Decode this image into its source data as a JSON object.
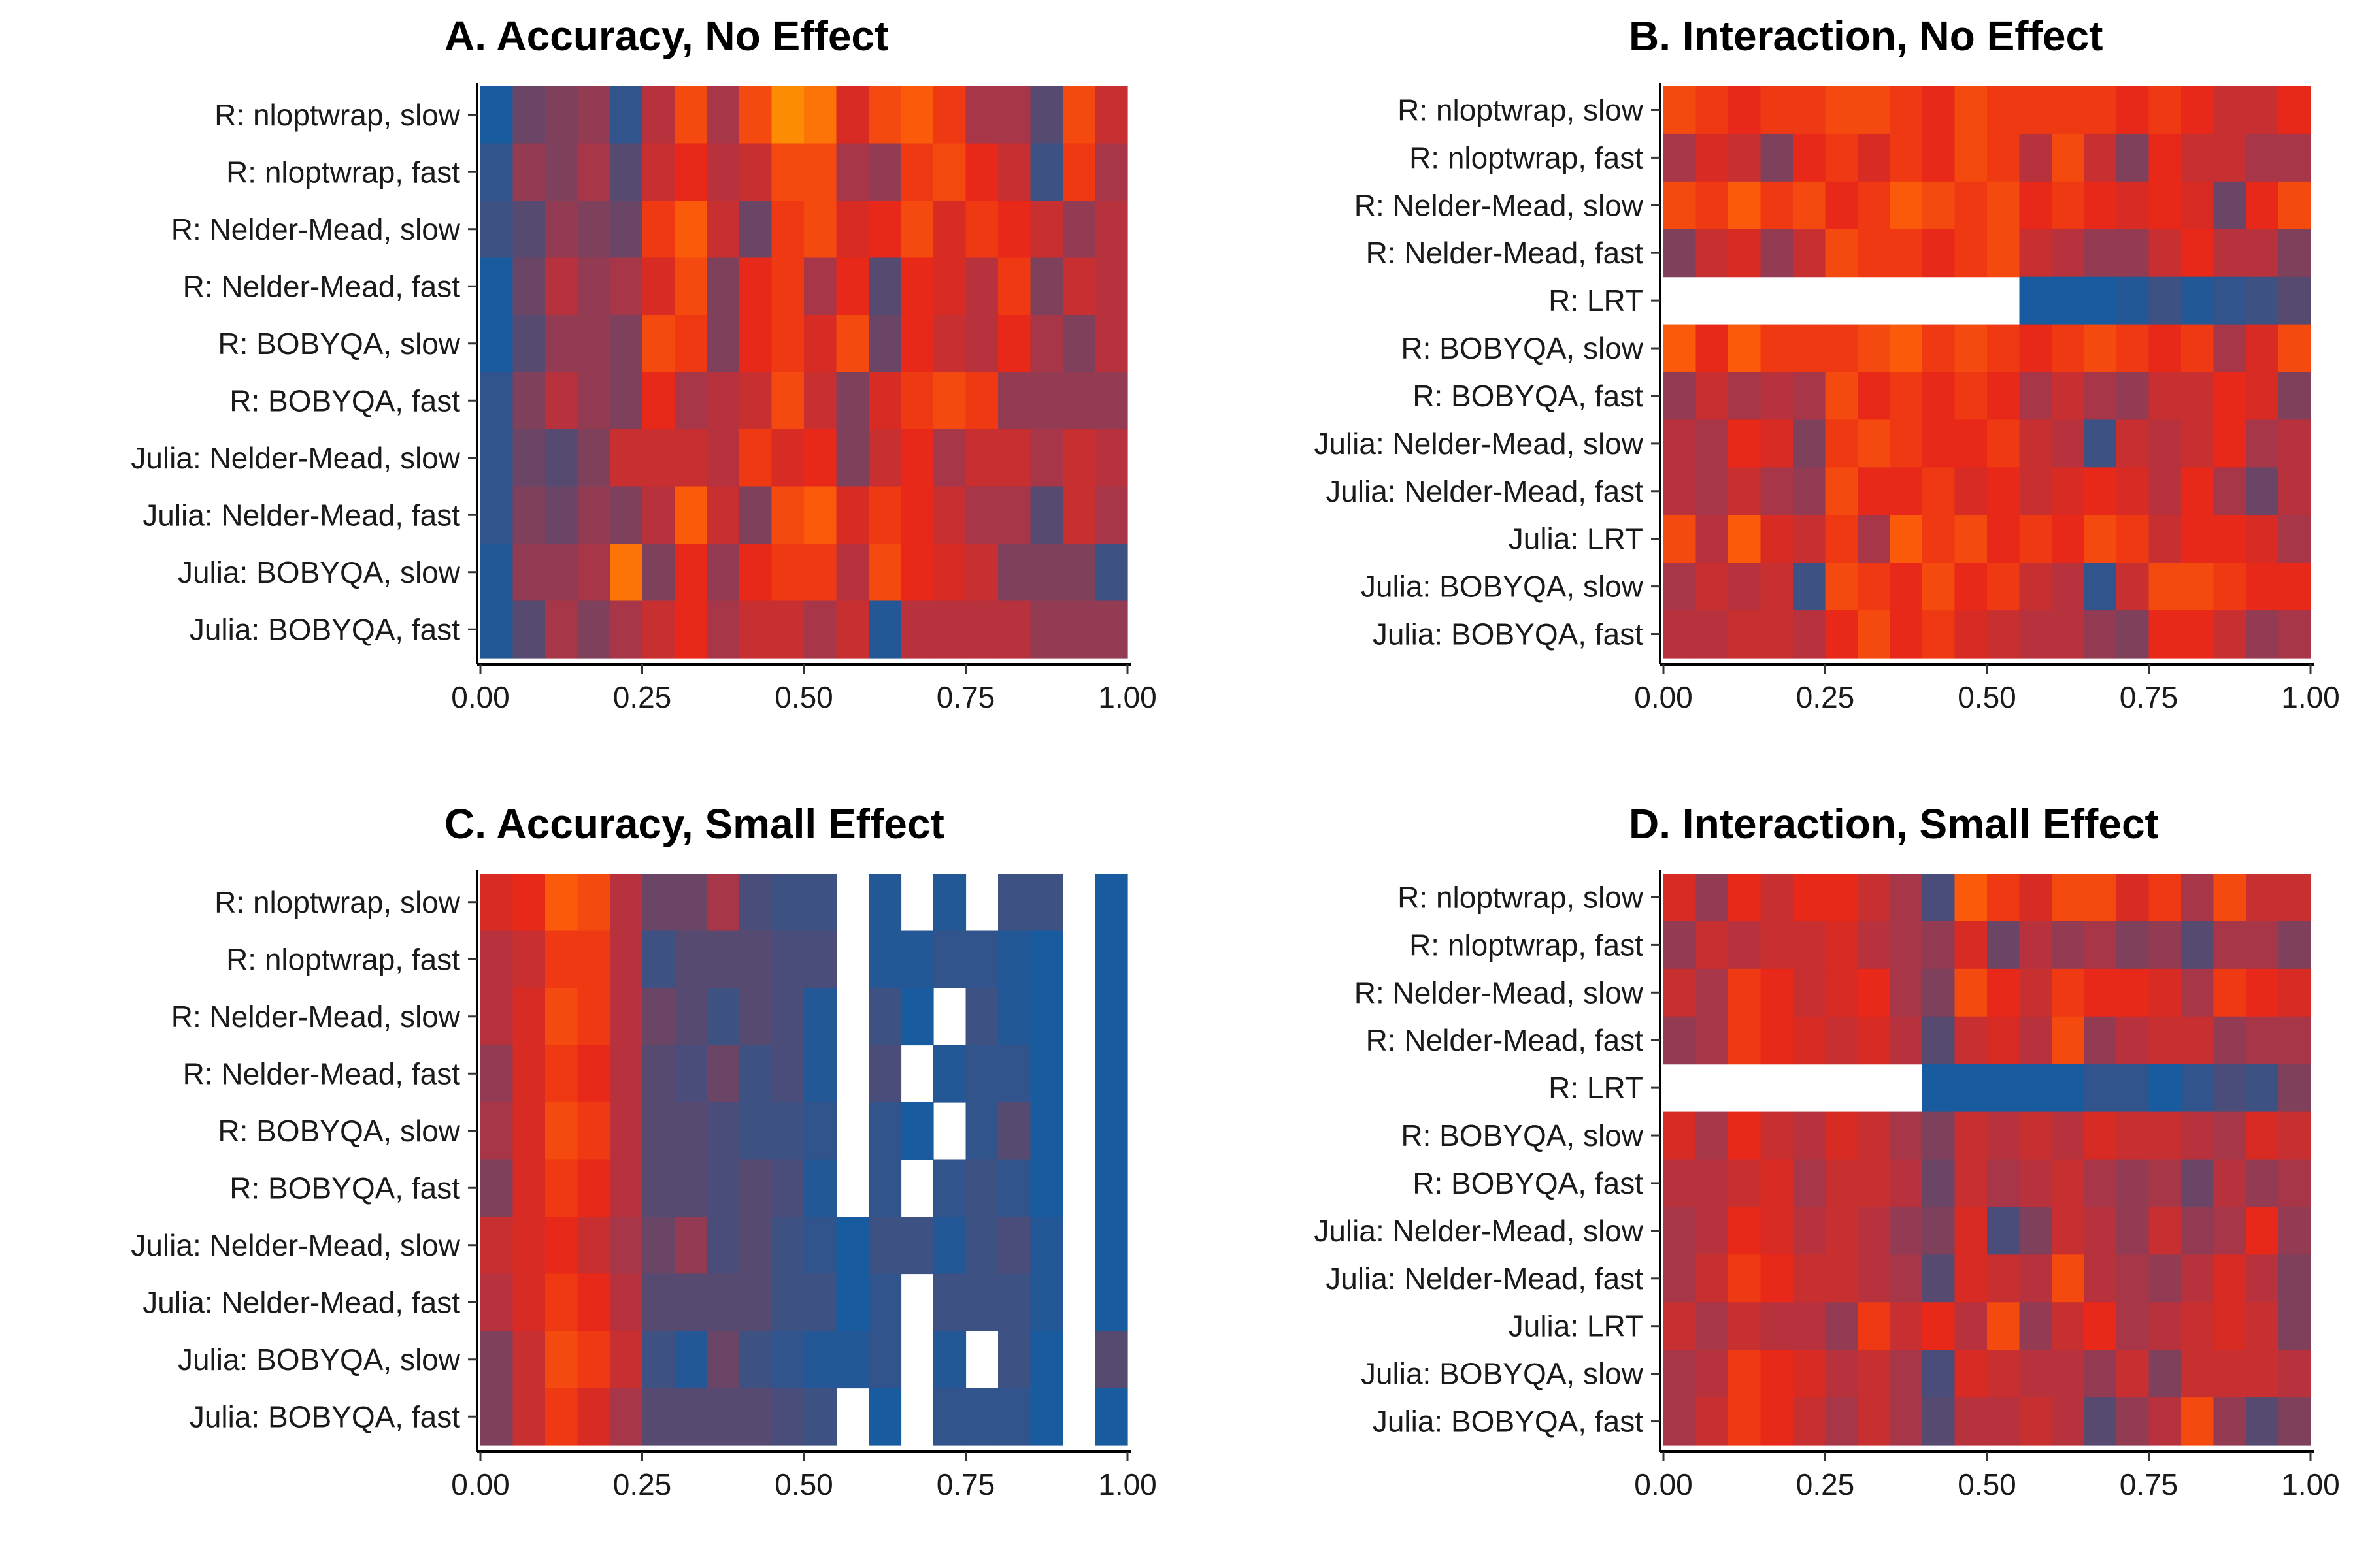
{
  "chart_data": [
    {
      "type": "heatmap",
      "title": "A. Accuracy, No Effect",
      "xlim": [
        0,
        1
      ],
      "x_ticks": [
        0,
        0.25,
        0.5,
        0.75,
        1
      ],
      "x_tick_labels": [
        "0.00",
        "0.25",
        "0.50",
        "0.75",
        "1.00"
      ],
      "bin_width": 0.05,
      "rows": [
        "R: nloptwrap, slow",
        "R: nloptwrap, fast",
        "R: Nelder-Mead, slow",
        "R: Nelder-Mead, fast",
        "R: BOBYQA, slow",
        "R: BOBYQA, fast",
        "Julia: Nelder-Mead, slow",
        "Julia: Nelder-Mead, fast",
        "Julia: BOBYQA, slow",
        "Julia: BOBYQA, fast"
      ],
      "values": [
        [
          0.05,
          0.35,
          0.4,
          0.45,
          0.15,
          0.55,
          0.8,
          0.5,
          0.8,
          0.95,
          0.9,
          0.65,
          0.8,
          0.85,
          0.75,
          0.5,
          0.5,
          0.3,
          0.8,
          0.6
        ],
        [
          0.15,
          0.45,
          0.4,
          0.5,
          0.3,
          0.6,
          0.7,
          0.55,
          0.6,
          0.8,
          0.8,
          0.5,
          0.45,
          0.75,
          0.8,
          0.7,
          0.6,
          0.2,
          0.75,
          0.5
        ],
        [
          0.2,
          0.3,
          0.45,
          0.4,
          0.35,
          0.75,
          0.85,
          0.6,
          0.35,
          0.75,
          0.8,
          0.65,
          0.7,
          0.8,
          0.65,
          0.75,
          0.7,
          0.6,
          0.45,
          0.55
        ],
        [
          0.05,
          0.35,
          0.55,
          0.45,
          0.5,
          0.65,
          0.8,
          0.4,
          0.7,
          0.75,
          0.5,
          0.7,
          0.3,
          0.7,
          0.65,
          0.55,
          0.75,
          0.4,
          0.6,
          0.55
        ],
        [
          0.05,
          0.3,
          0.45,
          0.45,
          0.4,
          0.8,
          0.75,
          0.4,
          0.7,
          0.75,
          0.65,
          0.8,
          0.35,
          0.7,
          0.6,
          0.55,
          0.7,
          0.5,
          0.4,
          0.55
        ],
        [
          0.15,
          0.4,
          0.55,
          0.45,
          0.4,
          0.7,
          0.5,
          0.55,
          0.6,
          0.8,
          0.6,
          0.4,
          0.65,
          0.75,
          0.8,
          0.75,
          0.45,
          0.45,
          0.45,
          0.45
        ],
        [
          0.15,
          0.35,
          0.3,
          0.4,
          0.6,
          0.6,
          0.6,
          0.55,
          0.75,
          0.65,
          0.7,
          0.4,
          0.6,
          0.7,
          0.5,
          0.6,
          0.6,
          0.5,
          0.6,
          0.55
        ],
        [
          0.15,
          0.4,
          0.35,
          0.45,
          0.4,
          0.55,
          0.85,
          0.6,
          0.4,
          0.8,
          0.85,
          0.65,
          0.75,
          0.7,
          0.6,
          0.5,
          0.5,
          0.3,
          0.6,
          0.5
        ],
        [
          0.1,
          0.45,
          0.45,
          0.5,
          0.9,
          0.4,
          0.7,
          0.45,
          0.7,
          0.75,
          0.75,
          0.55,
          0.8,
          0.7,
          0.65,
          0.6,
          0.4,
          0.4,
          0.4,
          0.2
        ],
        [
          0.1,
          0.3,
          0.5,
          0.4,
          0.5,
          0.6,
          0.7,
          0.5,
          0.6,
          0.6,
          0.5,
          0.6,
          0.1,
          0.55,
          0.55,
          0.55,
          0.55,
          0.45,
          0.45,
          0.45
        ]
      ]
    },
    {
      "type": "heatmap",
      "title": "B. Interaction, No Effect",
      "xlim": [
        0,
        1
      ],
      "x_ticks": [
        0,
        0.25,
        0.5,
        0.75,
        1
      ],
      "x_tick_labels": [
        "0.00",
        "0.25",
        "0.50",
        "0.75",
        "1.00"
      ],
      "bin_width": 0.05,
      "rows": [
        "R: nloptwrap, slow",
        "R: nloptwrap, fast",
        "R: Nelder-Mead, slow",
        "R: Nelder-Mead, fast",
        "R: LRT",
        "R: BOBYQA, slow",
        "R: BOBYQA, fast",
        "Julia: Nelder-Mead, slow",
        "Julia: Nelder-Mead, fast",
        "Julia: LRT",
        "Julia: BOBYQA, slow",
        "Julia: BOBYQA, fast"
      ],
      "values": [
        [
          0.8,
          0.75,
          0.7,
          0.75,
          0.75,
          0.8,
          0.8,
          0.75,
          0.7,
          0.8,
          0.75,
          0.75,
          0.75,
          0.75,
          0.7,
          0.75,
          0.7,
          0.6,
          0.6,
          0.7
        ],
        [
          0.5,
          0.65,
          0.6,
          0.4,
          0.7,
          0.75,
          0.65,
          0.75,
          0.7,
          0.8,
          0.75,
          0.55,
          0.8,
          0.6,
          0.4,
          0.7,
          0.6,
          0.6,
          0.5,
          0.5
        ],
        [
          0.8,
          0.75,
          0.85,
          0.75,
          0.8,
          0.7,
          0.75,
          0.85,
          0.8,
          0.75,
          0.8,
          0.7,
          0.75,
          0.7,
          0.65,
          0.7,
          0.65,
          0.35,
          0.7,
          0.8
        ],
        [
          0.4,
          0.6,
          0.65,
          0.45,
          0.6,
          0.8,
          0.75,
          0.75,
          0.7,
          0.75,
          0.8,
          0.6,
          0.55,
          0.45,
          0.45,
          0.6,
          0.7,
          0.55,
          0.55,
          0.4
        ],
        [
          null,
          null,
          null,
          null,
          null,
          null,
          null,
          null,
          null,
          null,
          null,
          0.05,
          0.05,
          0.05,
          0.1,
          0.2,
          0.1,
          0.15,
          0.2,
          0.3
        ],
        [
          0.85,
          0.7,
          0.85,
          0.75,
          0.75,
          0.75,
          0.8,
          0.85,
          0.75,
          0.8,
          0.75,
          0.7,
          0.75,
          0.8,
          0.75,
          0.7,
          0.75,
          0.5,
          0.65,
          0.8
        ],
        [
          0.45,
          0.6,
          0.5,
          0.55,
          0.5,
          0.8,
          0.7,
          0.75,
          0.7,
          0.75,
          0.7,
          0.5,
          0.6,
          0.5,
          0.45,
          0.6,
          0.6,
          0.7,
          0.65,
          0.4
        ],
        [
          0.55,
          0.5,
          0.7,
          0.65,
          0.4,
          0.75,
          0.8,
          0.75,
          0.7,
          0.7,
          0.75,
          0.6,
          0.55,
          0.2,
          0.6,
          0.55,
          0.6,
          0.7,
          0.5,
          0.55
        ],
        [
          0.55,
          0.5,
          0.6,
          0.5,
          0.45,
          0.8,
          0.7,
          0.7,
          0.75,
          0.65,
          0.7,
          0.6,
          0.65,
          0.7,
          0.65,
          0.55,
          0.7,
          0.5,
          0.35,
          0.55
        ],
        [
          0.8,
          0.55,
          0.85,
          0.65,
          0.6,
          0.75,
          0.5,
          0.85,
          0.75,
          0.8,
          0.7,
          0.75,
          0.7,
          0.8,
          0.75,
          0.6,
          0.7,
          0.7,
          0.65,
          0.5
        ],
        [
          0.5,
          0.6,
          0.55,
          0.6,
          0.2,
          0.8,
          0.75,
          0.7,
          0.8,
          0.7,
          0.75,
          0.6,
          0.55,
          0.15,
          0.6,
          0.8,
          0.8,
          0.75,
          0.7,
          0.7
        ],
        [
          0.55,
          0.55,
          0.6,
          0.6,
          0.55,
          0.7,
          0.8,
          0.7,
          0.75,
          0.65,
          0.6,
          0.55,
          0.55,
          0.45,
          0.4,
          0.7,
          0.7,
          0.6,
          0.45,
          0.5
        ]
      ]
    },
    {
      "type": "heatmap",
      "title": "C. Accuracy, Small Effect",
      "xlim": [
        0,
        1
      ],
      "x_ticks": [
        0,
        0.25,
        0.5,
        0.75,
        1
      ],
      "x_tick_labels": [
        "0.00",
        "0.25",
        "0.50",
        "0.75",
        "1.00"
      ],
      "bin_width": 0.05,
      "rows": [
        "R: nloptwrap, slow",
        "R: nloptwrap, fast",
        "R: Nelder-Mead, slow",
        "R: Nelder-Mead, fast",
        "R: BOBYQA, slow",
        "R: BOBYQA, fast",
        "Julia: Nelder-Mead, slow",
        "Julia: Nelder-Mead, fast",
        "Julia: BOBYQA, slow",
        "Julia: BOBYQA, fast"
      ],
      "values": [
        [
          0.65,
          0.7,
          0.85,
          0.8,
          0.55,
          0.35,
          0.35,
          0.5,
          0.25,
          0.2,
          0.2,
          null,
          0.1,
          null,
          0.1,
          null,
          0.2,
          0.2,
          null,
          0.05
        ],
        [
          0.55,
          0.6,
          0.75,
          0.75,
          0.55,
          0.2,
          0.3,
          0.3,
          0.3,
          0.25,
          0.25,
          null,
          0.1,
          0.1,
          0.15,
          0.15,
          0.1,
          0.05,
          null,
          0.05
        ],
        [
          0.55,
          0.65,
          0.8,
          0.75,
          0.55,
          0.35,
          0.3,
          0.2,
          0.3,
          0.25,
          0.1,
          null,
          0.2,
          0.05,
          null,
          0.2,
          0.1,
          0.05,
          null,
          0.05
        ],
        [
          0.45,
          0.65,
          0.75,
          0.7,
          0.55,
          0.3,
          0.25,
          0.35,
          0.2,
          0.25,
          0.1,
          null,
          0.25,
          null,
          0.1,
          0.15,
          0.15,
          0.05,
          null,
          0.05
        ],
        [
          0.5,
          0.65,
          0.8,
          0.75,
          0.55,
          0.3,
          0.3,
          0.25,
          0.2,
          0.2,
          0.15,
          null,
          0.15,
          0.05,
          null,
          0.15,
          0.3,
          0.05,
          null,
          0.05
        ],
        [
          0.4,
          0.65,
          0.75,
          0.7,
          0.55,
          0.3,
          0.3,
          0.25,
          0.3,
          0.25,
          0.1,
          null,
          0.15,
          null,
          0.15,
          0.2,
          0.15,
          0.05,
          null,
          0.05
        ],
        [
          0.6,
          0.65,
          0.7,
          0.6,
          0.5,
          0.35,
          0.45,
          0.25,
          0.3,
          0.2,
          0.15,
          0.05,
          0.2,
          0.2,
          0.1,
          0.2,
          0.25,
          0.1,
          null,
          0.05
        ],
        [
          0.55,
          0.65,
          0.75,
          0.7,
          0.55,
          0.3,
          0.3,
          0.3,
          0.3,
          0.2,
          0.2,
          0.05,
          0.15,
          null,
          0.2,
          0.2,
          0.2,
          0.1,
          null,
          0.05
        ],
        [
          0.4,
          0.6,
          0.8,
          0.75,
          0.6,
          0.2,
          0.1,
          0.35,
          0.2,
          0.15,
          0.1,
          0.1,
          0.15,
          null,
          0.1,
          null,
          0.2,
          0.05,
          null,
          0.3
        ],
        [
          0.4,
          0.6,
          0.75,
          0.65,
          0.5,
          0.3,
          0.3,
          0.3,
          0.3,
          0.25,
          0.2,
          null,
          0.05,
          null,
          0.15,
          0.15,
          0.15,
          0.05,
          null,
          0.05
        ]
      ]
    },
    {
      "type": "heatmap",
      "title": "D. Interaction, Small Effect",
      "xlim": [
        0,
        1
      ],
      "x_ticks": [
        0,
        0.25,
        0.5,
        0.75,
        1
      ],
      "x_tick_labels": [
        "0.00",
        "0.25",
        "0.50",
        "0.75",
        "1.00"
      ],
      "bin_width": 0.05,
      "rows": [
        "R: nloptwrap, slow",
        "R: nloptwrap, fast",
        "R: Nelder-Mead, slow",
        "R: Nelder-Mead, fast",
        "R: LRT",
        "R: BOBYQA, slow",
        "R: BOBYQA, fast",
        "Julia: Nelder-Mead, slow",
        "Julia: Nelder-Mead, fast",
        "Julia: LRT",
        "Julia: BOBYQA, slow",
        "Julia: BOBYQA, fast"
      ],
      "values": [
        [
          0.65,
          0.45,
          0.7,
          0.6,
          0.7,
          0.7,
          0.6,
          0.5,
          0.25,
          0.85,
          0.75,
          0.65,
          0.8,
          0.8,
          0.65,
          0.75,
          0.5,
          0.8,
          0.6,
          0.6
        ],
        [
          0.45,
          0.6,
          0.55,
          0.6,
          0.6,
          0.65,
          0.55,
          0.5,
          0.45,
          0.65,
          0.35,
          0.55,
          0.45,
          0.5,
          0.4,
          0.45,
          0.3,
          0.5,
          0.5,
          0.4
        ],
        [
          0.6,
          0.5,
          0.75,
          0.7,
          0.6,
          0.65,
          0.7,
          0.5,
          0.4,
          0.8,
          0.7,
          0.6,
          0.75,
          0.7,
          0.7,
          0.65,
          0.5,
          0.75,
          0.7,
          0.65
        ],
        [
          0.45,
          0.5,
          0.75,
          0.7,
          0.65,
          0.6,
          0.65,
          0.55,
          0.3,
          0.6,
          0.65,
          0.55,
          0.8,
          0.45,
          0.55,
          0.6,
          0.6,
          0.45,
          0.5,
          0.5
        ],
        [
          null,
          null,
          null,
          null,
          null,
          null,
          null,
          null,
          0.05,
          0.05,
          0.05,
          0.05,
          0.05,
          0.15,
          0.15,
          0.05,
          0.15,
          0.25,
          0.2,
          0.4
        ],
        [
          0.65,
          0.5,
          0.7,
          0.6,
          0.55,
          0.65,
          0.6,
          0.5,
          0.4,
          0.6,
          0.55,
          0.6,
          0.55,
          0.65,
          0.6,
          0.6,
          0.55,
          0.5,
          0.65,
          0.6
        ],
        [
          0.55,
          0.55,
          0.6,
          0.65,
          0.5,
          0.6,
          0.6,
          0.55,
          0.35,
          0.6,
          0.5,
          0.55,
          0.6,
          0.5,
          0.45,
          0.5,
          0.35,
          0.55,
          0.45,
          0.5
        ],
        [
          0.5,
          0.55,
          0.7,
          0.65,
          0.55,
          0.6,
          0.55,
          0.45,
          0.4,
          0.65,
          0.25,
          0.4,
          0.6,
          0.55,
          0.45,
          0.6,
          0.45,
          0.5,
          0.7,
          0.45
        ],
        [
          0.5,
          0.6,
          0.75,
          0.7,
          0.6,
          0.6,
          0.55,
          0.5,
          0.3,
          0.65,
          0.6,
          0.55,
          0.8,
          0.55,
          0.5,
          0.45,
          0.55,
          0.65,
          0.55,
          0.4
        ],
        [
          0.6,
          0.5,
          0.6,
          0.55,
          0.55,
          0.45,
          0.75,
          0.6,
          0.7,
          0.55,
          0.8,
          0.45,
          0.6,
          0.7,
          0.5,
          0.55,
          0.6,
          0.65,
          0.6,
          0.4
        ],
        [
          0.5,
          0.55,
          0.75,
          0.7,
          0.65,
          0.55,
          0.6,
          0.5,
          0.25,
          0.65,
          0.6,
          0.55,
          0.55,
          0.45,
          0.6,
          0.4,
          0.6,
          0.6,
          0.6,
          0.55
        ],
        [
          0.5,
          0.6,
          0.75,
          0.7,
          0.6,
          0.5,
          0.6,
          0.5,
          0.3,
          0.55,
          0.55,
          0.6,
          0.55,
          0.3,
          0.45,
          0.55,
          0.8,
          0.45,
          0.3,
          0.4
        ]
      ]
    }
  ]
}
